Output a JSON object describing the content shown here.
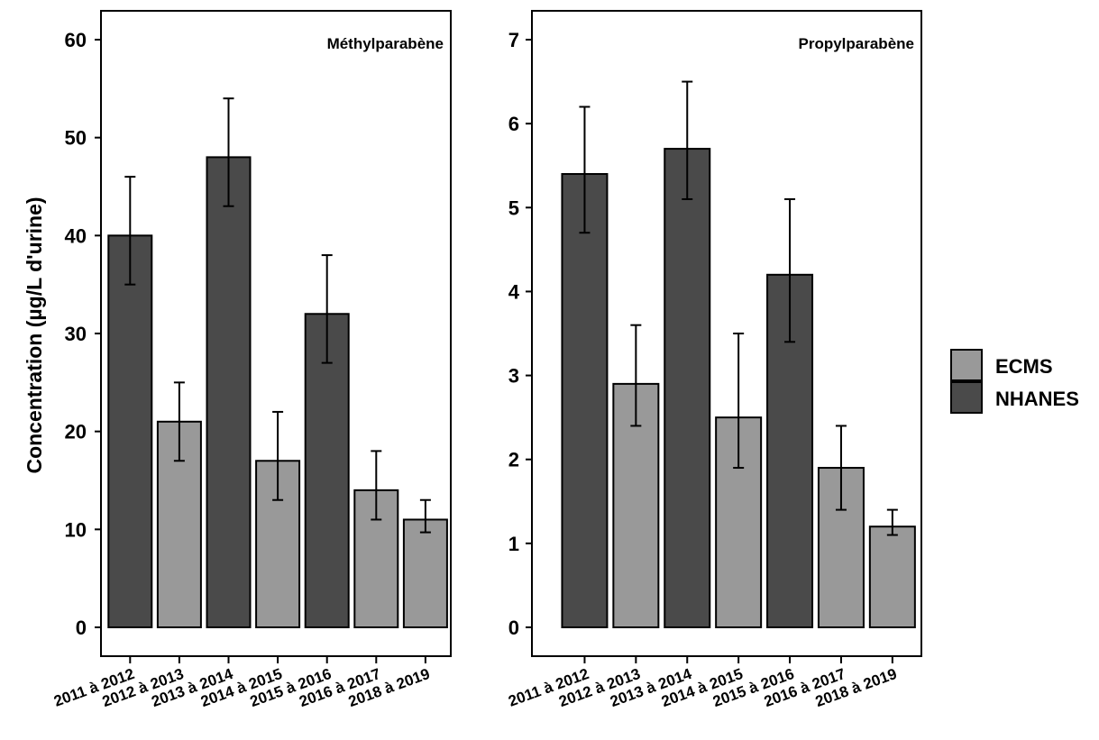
{
  "chart_data": {
    "type": "bar",
    "ylabel": "Concentration (µg/L d'urine)",
    "categories": [
      "2011 à 2012",
      "2012 à 2013",
      "2013 à 2014",
      "2014 à 2015",
      "2015 à 2016",
      "2016 à 2017",
      "2018 à 2019"
    ],
    "legend": {
      "placement": "right",
      "items": [
        {
          "name": "ECMS",
          "color": "#999999"
        },
        {
          "name": "NHANES",
          "color": "#4a4a4a"
        }
      ]
    },
    "panels": [
      {
        "title": "Méthylparabène",
        "ylim": [
          0,
          60
        ],
        "yticks": [
          0,
          10,
          20,
          30,
          40,
          50,
          60
        ],
        "bars": [
          {
            "category": "2011 à 2012",
            "survey": "NHANES",
            "value": 40,
            "err_low": 35,
            "err_high": 46
          },
          {
            "category": "2012 à 2013",
            "survey": "ECMS",
            "value": 21,
            "err_low": 17,
            "err_high": 25
          },
          {
            "category": "2013 à 2014",
            "survey": "NHANES",
            "value": 48,
            "err_low": 43,
            "err_high": 54
          },
          {
            "category": "2014 à 2015",
            "survey": "ECMS",
            "value": 17,
            "err_low": 13,
            "err_high": 22
          },
          {
            "category": "2015 à 2016",
            "survey": "NHANES",
            "value": 32,
            "err_low": 27,
            "err_high": 38
          },
          {
            "category": "2016 à 2017",
            "survey": "ECMS",
            "value": 14,
            "err_low": 11,
            "err_high": 18
          },
          {
            "category": "2018 à 2019",
            "survey": "ECMS",
            "value": 11,
            "err_low": 9.7,
            "err_high": 13
          }
        ]
      },
      {
        "title": "Propylparabène",
        "ylim": [
          0,
          7
        ],
        "yticks": [
          0,
          1,
          2,
          3,
          4,
          5,
          6,
          7
        ],
        "bars": [
          {
            "category": "2011 à 2012",
            "survey": "NHANES",
            "value": 5.4,
            "err_low": 4.7,
            "err_high": 6.2
          },
          {
            "category": "2012 à 2013",
            "survey": "ECMS",
            "value": 2.9,
            "err_low": 2.4,
            "err_high": 3.6
          },
          {
            "category": "2013 à 2014",
            "survey": "NHANES",
            "value": 5.7,
            "err_low": 5.1,
            "err_high": 6.5
          },
          {
            "category": "2014 à 2015",
            "survey": "ECMS",
            "value": 2.5,
            "err_low": 1.9,
            "err_high": 3.5
          },
          {
            "category": "2015 à 2016",
            "survey": "NHANES",
            "value": 4.2,
            "err_low": 3.4,
            "err_high": 5.1
          },
          {
            "category": "2016 à 2017",
            "survey": "ECMS",
            "value": 1.9,
            "err_low": 1.4,
            "err_high": 2.4
          },
          {
            "category": "2018 à 2019",
            "survey": "ECMS",
            "value": 1.2,
            "err_low": 1.1,
            "err_high": 1.4
          }
        ]
      }
    ]
  }
}
